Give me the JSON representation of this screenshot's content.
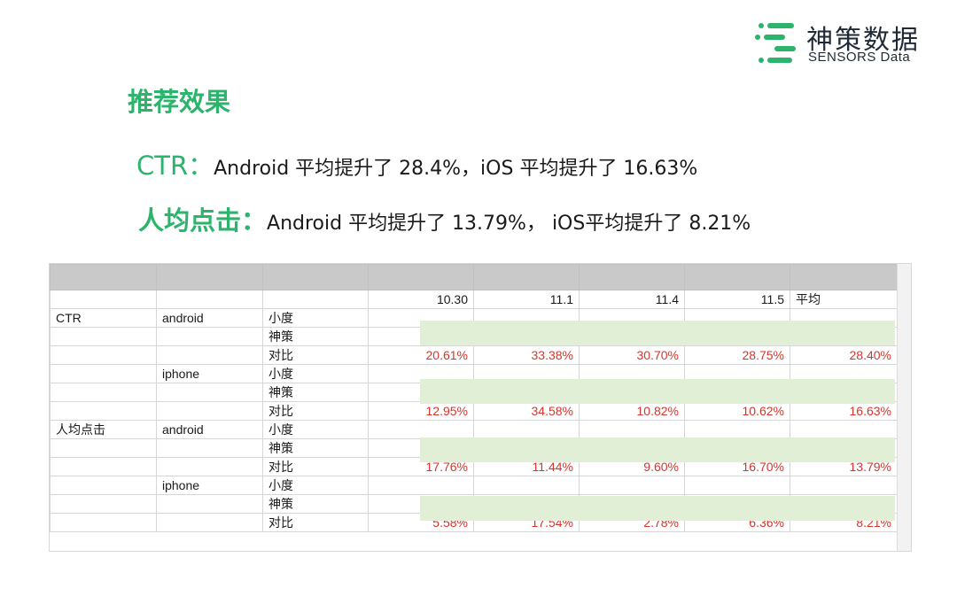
{
  "brand": {
    "name_cn": "神策数据",
    "name_en": "SENSORS Data",
    "color": "#2db46c"
  },
  "slide": {
    "title": "推荐效果",
    "ctr_label": "CTR：",
    "ctr_text": "Android 平均提升了 28.4%，iOS 平均提升了 16.63%",
    "click_label": "人均点击：",
    "click_text": "Android 平均提升了 13.79%， iOS平均提升了 8.21%"
  },
  "table": {
    "headers": [
      "",
      "",
      "",
      "10.30",
      "11.1",
      "11.4",
      "11.5",
      "平均"
    ],
    "rows": [
      {
        "metric": "CTR",
        "platform": "android",
        "source": "小度",
        "values": [
          "",
          "",
          "",
          "",
          ""
        ]
      },
      {
        "metric": "",
        "platform": "",
        "source": "神策",
        "values": [
          "",
          "",
          "",
          "",
          ""
        ]
      },
      {
        "metric": "",
        "platform": "",
        "source": "对比",
        "values": [
          "20.61%",
          "33.38%",
          "30.70%",
          "28.75%",
          "28.40%"
        ]
      },
      {
        "metric": "",
        "platform": "iphone",
        "source": "小度",
        "values": [
          "",
          "",
          "",
          "",
          ""
        ]
      },
      {
        "metric": "",
        "platform": "",
        "source": "神策",
        "values": [
          "",
          "",
          "",
          "",
          ""
        ]
      },
      {
        "metric": "",
        "platform": "",
        "source": "对比",
        "values": [
          "12.95%",
          "34.58%",
          "10.82%",
          "10.62%",
          "16.63%"
        ]
      },
      {
        "metric": "人均点击",
        "platform": "android",
        "source": "小度",
        "values": [
          "",
          "",
          "",
          "",
          ""
        ]
      },
      {
        "metric": "",
        "platform": "",
        "source": "神策",
        "values": [
          "",
          "",
          "",
          "",
          ""
        ]
      },
      {
        "metric": "",
        "platform": "",
        "source": "对比",
        "values": [
          "17.76%",
          "11.44%",
          "9.60%",
          "16.70%",
          "13.79%"
        ]
      },
      {
        "metric": "",
        "platform": "iphone",
        "source": "小度",
        "values": [
          "",
          "",
          "",
          "",
          ""
        ]
      },
      {
        "metric": "",
        "platform": "",
        "source": "神策",
        "values": [
          "",
          "",
          "",
          "",
          ""
        ]
      },
      {
        "metric": "",
        "platform": "",
        "source": "对比",
        "values": [
          "5.58%",
          "17.54%",
          "2.78%",
          "6.36%",
          "8.21%"
        ]
      }
    ]
  }
}
